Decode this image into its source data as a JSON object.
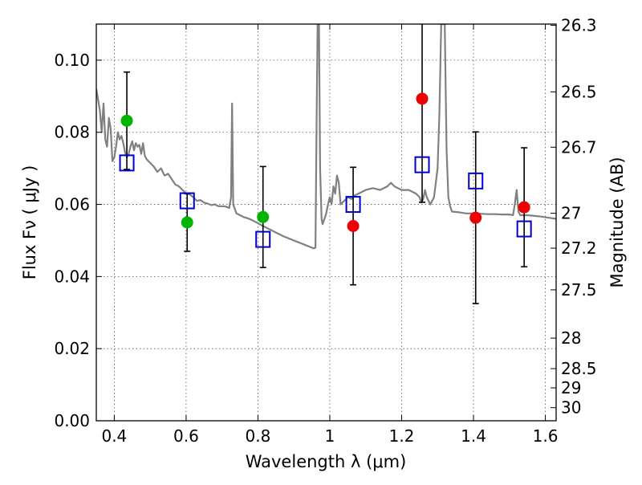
{
  "chart_data": {
    "type": "scatter",
    "title": "",
    "xlabel": "Wavelength  λ (μm)",
    "ylabel": "Flux  Fν  ( μJy )",
    "y2label": "Magnitude (AB)",
    "xlim": [
      0.35,
      1.63
    ],
    "ylim": [
      0.0,
      0.11
    ],
    "grid": true,
    "x_ticks": [
      0.4,
      0.6,
      0.8,
      1.0,
      1.2,
      1.4,
      1.6
    ],
    "x_tick_labels": [
      "0.4",
      "0.6",
      "0.8",
      "1",
      "1.2",
      "1.4",
      "1.6"
    ],
    "y_ticks": [
      0.0,
      0.02,
      0.04,
      0.06,
      0.08,
      0.1
    ],
    "y_tick_labels": [
      "0.00",
      "0.02",
      "0.04",
      "0.06",
      "0.08",
      "0.10"
    ],
    "mag_ticks": [
      {
        "label": "26.3",
        "mag": 26.3
      },
      {
        "label": "26.5",
        "mag": 26.5
      },
      {
        "label": "26.7",
        "mag": 26.7
      },
      {
        "label": "27",
        "mag": 27.0
      },
      {
        "label": "27.2",
        "mag": 27.2
      },
      {
        "label": "27.5",
        "mag": 27.5
      },
      {
        "label": "28",
        "mag": 28.0
      },
      {
        "label": "28.5",
        "mag": 28.5
      },
      {
        "label": "29",
        "mag": 29.0
      },
      {
        "label": "30",
        "mag": 30.0
      }
    ],
    "colors": {
      "model": "#808080",
      "green": "#00b400",
      "red": "#ee0000",
      "box": "#0000cc",
      "errorbar": "#000000",
      "grid": "#555555"
    },
    "series": [
      {
        "name": "observed-green",
        "marker": "circle",
        "color": "green",
        "x": [
          0.435,
          0.603,
          0.814
        ],
        "y": [
          0.0832,
          0.055,
          0.0565
        ],
        "yerr": [
          0.0135,
          0.008,
          0.014
        ]
      },
      {
        "name": "observed-red",
        "marker": "circle",
        "color": "red",
        "x": [
          1.065,
          1.257,
          1.406,
          1.541
        ],
        "y": [
          0.054,
          0.0893,
          0.0563,
          0.0592
        ],
        "yerr": [
          0.0163,
          0.0287,
          0.0238,
          0.0165
        ]
      },
      {
        "name": "model-photometry",
        "marker": "square",
        "color": "box",
        "x": [
          0.435,
          0.603,
          0.814,
          1.065,
          1.257,
          1.406,
          1.541
        ],
        "y": [
          0.0715,
          0.061,
          0.0503,
          0.06,
          0.071,
          0.0665,
          0.0532
        ]
      },
      {
        "name": "model-spectrum",
        "type": "line",
        "color": "model",
        "points": [
          [
            0.35,
            0.092
          ],
          [
            0.36,
            0.086
          ],
          [
            0.365,
            0.08
          ],
          [
            0.37,
            0.088
          ],
          [
            0.375,
            0.078
          ],
          [
            0.38,
            0.076
          ],
          [
            0.385,
            0.084
          ],
          [
            0.39,
            0.081
          ],
          [
            0.395,
            0.072
          ],
          [
            0.4,
            0.073
          ],
          [
            0.405,
            0.076
          ],
          [
            0.41,
            0.08
          ],
          [
            0.415,
            0.078
          ],
          [
            0.42,
            0.079
          ],
          [
            0.425,
            0.077
          ],
          [
            0.43,
            0.0745
          ],
          [
            0.435,
            0.073
          ],
          [
            0.44,
            0.074
          ],
          [
            0.445,
            0.076
          ],
          [
            0.45,
            0.0775
          ],
          [
            0.455,
            0.075
          ],
          [
            0.46,
            0.077
          ],
          [
            0.465,
            0.076
          ],
          [
            0.47,
            0.0765
          ],
          [
            0.475,
            0.074
          ],
          [
            0.48,
            0.077
          ],
          [
            0.485,
            0.0735
          ],
          [
            0.49,
            0.0725
          ],
          [
            0.5,
            0.0715
          ],
          [
            0.51,
            0.0705
          ],
          [
            0.52,
            0.069
          ],
          [
            0.53,
            0.07
          ],
          [
            0.54,
            0.068
          ],
          [
            0.55,
            0.0685
          ],
          [
            0.56,
            0.067
          ],
          [
            0.57,
            0.0655
          ],
          [
            0.58,
            0.065
          ],
          [
            0.59,
            0.064
          ],
          [
            0.6,
            0.063
          ],
          [
            0.61,
            0.0628
          ],
          [
            0.62,
            0.062
          ],
          [
            0.63,
            0.061
          ],
          [
            0.64,
            0.0612
          ],
          [
            0.65,
            0.0605
          ],
          [
            0.66,
            0.0602
          ],
          [
            0.67,
            0.0598
          ],
          [
            0.68,
            0.06
          ],
          [
            0.69,
            0.0595
          ],
          [
            0.7,
            0.0595
          ],
          [
            0.71,
            0.0594
          ],
          [
            0.72,
            0.059
          ],
          [
            0.725,
            0.062
          ],
          [
            0.728,
            0.088
          ],
          [
            0.731,
            0.06
          ],
          [
            0.74,
            0.0575
          ],
          [
            0.75,
            0.057
          ],
          [
            0.76,
            0.0565
          ],
          [
            0.77,
            0.0562
          ],
          [
            0.78,
            0.0558
          ],
          [
            0.79,
            0.0553
          ],
          [
            0.8,
            0.0548
          ],
          [
            0.81,
            0.0542
          ],
          [
            0.82,
            0.0537
          ],
          [
            0.83,
            0.0532
          ],
          [
            0.84,
            0.0527
          ],
          [
            0.85,
            0.0522
          ],
          [
            0.86,
            0.0517
          ],
          [
            0.87,
            0.0512
          ],
          [
            0.88,
            0.0508
          ],
          [
            0.89,
            0.0504
          ],
          [
            0.9,
            0.05
          ],
          [
            0.91,
            0.0496
          ],
          [
            0.92,
            0.0492
          ],
          [
            0.93,
            0.0488
          ],
          [
            0.94,
            0.0484
          ],
          [
            0.95,
            0.048
          ],
          [
            0.955,
            0.0478
          ],
          [
            0.96,
            0.048
          ],
          [
            0.963,
            0.08
          ],
          [
            0.966,
            0.11
          ],
          [
            0.97,
            0.11
          ],
          [
            0.973,
            0.07
          ],
          [
            0.977,
            0.056
          ],
          [
            0.98,
            0.0545
          ],
          [
            0.985,
            0.056
          ],
          [
            0.99,
            0.0575
          ],
          [
            0.995,
            0.06
          ],
          [
            1.0,
            0.062
          ],
          [
            1.005,
            0.06
          ],
          [
            1.01,
            0.065
          ],
          [
            1.015,
            0.063
          ],
          [
            1.02,
            0.068
          ],
          [
            1.025,
            0.066
          ],
          [
            1.03,
            0.06
          ],
          [
            1.04,
            0.061
          ],
          [
            1.05,
            0.062
          ],
          [
            1.06,
            0.0615
          ],
          [
            1.07,
            0.0625
          ],
          [
            1.08,
            0.063
          ],
          [
            1.1,
            0.064
          ],
          [
            1.12,
            0.0645
          ],
          [
            1.14,
            0.064
          ],
          [
            1.16,
            0.065
          ],
          [
            1.17,
            0.066
          ],
          [
            1.18,
            0.065
          ],
          [
            1.2,
            0.064
          ],
          [
            1.22,
            0.064
          ],
          [
            1.24,
            0.063
          ],
          [
            1.25,
            0.062
          ],
          [
            1.255,
            0.0605
          ],
          [
            1.26,
            0.0615
          ],
          [
            1.265,
            0.064
          ],
          [
            1.27,
            0.062
          ],
          [
            1.28,
            0.06
          ],
          [
            1.29,
            0.062
          ],
          [
            1.3,
            0.07
          ],
          [
            1.305,
            0.085
          ],
          [
            1.31,
            0.11
          ],
          [
            1.32,
            0.11
          ],
          [
            1.325,
            0.075
          ],
          [
            1.33,
            0.062
          ],
          [
            1.335,
            0.0595
          ],
          [
            1.34,
            0.058
          ],
          [
            1.36,
            0.0578
          ],
          [
            1.38,
            0.0575
          ],
          [
            1.4,
            0.0575
          ],
          [
            1.42,
            0.0574
          ],
          [
            1.44,
            0.0573
          ],
          [
            1.46,
            0.0573
          ],
          [
            1.48,
            0.0572
          ],
          [
            1.5,
            0.0572
          ],
          [
            1.51,
            0.057
          ],
          [
            1.515,
            0.06
          ],
          [
            1.52,
            0.064
          ],
          [
            1.525,
            0.058
          ],
          [
            1.53,
            0.057
          ],
          [
            1.55,
            0.057
          ],
          [
            1.57,
            0.0568
          ],
          [
            1.59,
            0.0566
          ],
          [
            1.61,
            0.0563
          ],
          [
            1.63,
            0.056
          ]
        ]
      }
    ]
  }
}
